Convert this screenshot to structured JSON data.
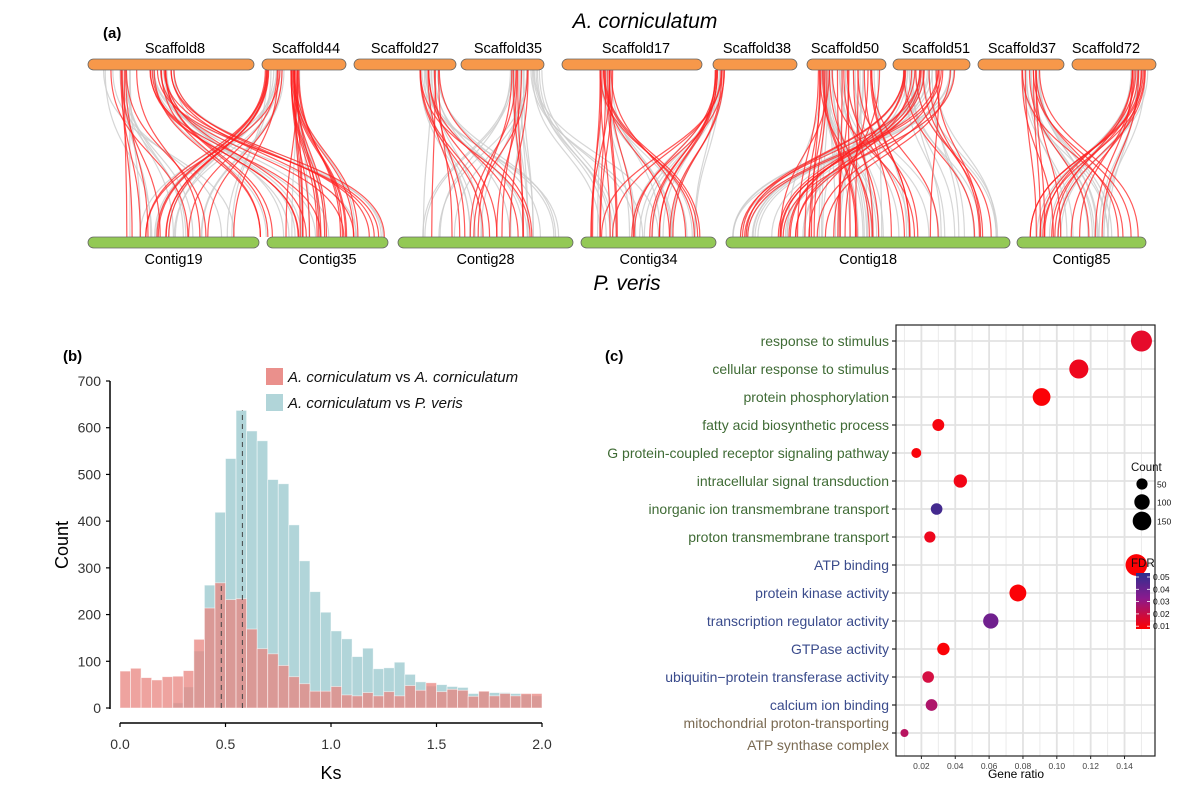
{
  "panel_a": {
    "label": "(a)",
    "top_species": "A. corniculatum",
    "bottom_species": "P. veris",
    "top_color": "#f7984a",
    "bottom_color": "#93c955",
    "highlight_color": "#ff2020",
    "background_link_color": "#cccccc",
    "scaffolds": [
      "Scaffold8",
      "Scaffold44",
      "Scaffold27",
      "Scaffold35",
      "Scaffold17",
      "Scaffold38",
      "Scaffold50",
      "Scaffold51",
      "Scaffold37",
      "Scaffold72"
    ],
    "contigs": [
      "Contig19",
      "Contig35",
      "Contig28",
      "Contig34",
      "Contig18",
      "Contig85"
    ]
  },
  "chart_data": [
    {
      "type": "bar",
      "panel": "(b)",
      "title": "",
      "xlabel": "Ks",
      "ylabel": "Count",
      "xlim": [
        0.0,
        2.0
      ],
      "ylim": [
        0,
        700
      ],
      "x_ticks": [
        "0.0",
        "0.5",
        "1.0",
        "1.5",
        "2.0"
      ],
      "y_ticks": [
        "0",
        "100",
        "200",
        "300",
        "400",
        "500",
        "600",
        "700"
      ],
      "bin_width": 0.05,
      "bin_starts": [
        0.0,
        0.05,
        0.1,
        0.15,
        0.2,
        0.25,
        0.3,
        0.35,
        0.4,
        0.45,
        0.5,
        0.55,
        0.6,
        0.65,
        0.7,
        0.75,
        0.8,
        0.85,
        0.9,
        0.95,
        1.0,
        1.05,
        1.1,
        1.15,
        1.2,
        1.25,
        1.3,
        1.35,
        1.4,
        1.45,
        1.5,
        1.55,
        1.6,
        1.65,
        1.7,
        1.75,
        1.8,
        1.85,
        1.9,
        1.95
      ],
      "legend_position": "top-right",
      "series": [
        {
          "name": "A. corniculatum vs A. corniculatum",
          "legend_parts": [
            "A. corniculatum",
            " vs ",
            "A. corniculatum"
          ],
          "color": "#e8847f",
          "values": [
            79,
            85,
            65,
            60,
            67,
            68,
            80,
            147,
            214,
            268,
            232,
            234,
            169,
            127,
            116,
            91,
            67,
            52,
            36,
            36,
            46,
            28,
            26,
            33,
            26,
            35,
            26,
            48,
            38,
            54,
            35,
            40,
            38,
            25,
            36,
            26,
            31,
            26,
            31,
            31
          ],
          "peak_ks": 0.48
        },
        {
          "name": "A. corniculatum vs P. veris",
          "legend_parts": [
            "A. corniculatum",
            " vs ",
            "P. veris"
          ],
          "color": "#a9d0d5",
          "values": [
            0,
            0,
            0,
            0,
            2,
            11,
            45,
            122,
            263,
            419,
            534,
            637,
            593,
            572,
            489,
            480,
            392,
            315,
            249,
            205,
            165,
            148,
            110,
            128,
            84,
            86,
            98,
            72,
            56,
            47,
            50,
            46,
            44,
            31,
            35,
            33,
            33,
            31,
            29,
            26
          ],
          "peak_ks": 0.58
        }
      ]
    },
    {
      "type": "scatter",
      "panel": "(c)",
      "title": "",
      "xlabel": "Gene ratio",
      "ylabel": "",
      "xlim": [
        0.005,
        0.158
      ],
      "x_ticks": [
        "0.02",
        "0.04",
        "0.06",
        "0.08",
        "0.10",
        "0.12",
        "0.14"
      ],
      "grid": true,
      "categories": [
        {
          "term": "response to stimulus",
          "group": "BP",
          "gene_ratio": 0.15,
          "count": 140,
          "fdr": 0.012
        },
        {
          "term": "cellular response to stimulus",
          "group": "BP",
          "gene_ratio": 0.113,
          "count": 110,
          "fdr": 0.008
        },
        {
          "term": "protein phosphorylation",
          "group": "BP",
          "gene_ratio": 0.091,
          "count": 92,
          "fdr": 0.002
        },
        {
          "term": "fatty acid biosynthetic process",
          "group": "BP",
          "gene_ratio": 0.03,
          "count": 30,
          "fdr": 0.004
        },
        {
          "term": "G protein-coupled receptor signaling pathway",
          "group": "BP",
          "gene_ratio": 0.017,
          "count": 17,
          "fdr": 0.003
        },
        {
          "term": "intracellular signal transduction",
          "group": "BP",
          "gene_ratio": 0.043,
          "count": 42,
          "fdr": 0.006
        },
        {
          "term": "inorganic ion transmembrane transport",
          "group": "BP",
          "gene_ratio": 0.029,
          "count": 28,
          "fdr": 0.046
        },
        {
          "term": "proton transmembrane transport",
          "group": "BP",
          "gene_ratio": 0.025,
          "count": 25,
          "fdr": 0.008
        },
        {
          "term": "ATP binding",
          "group": "MF",
          "gene_ratio": 0.147,
          "count": 150,
          "fdr": 0.001
        },
        {
          "term": "protein kinase activity",
          "group": "MF",
          "gene_ratio": 0.077,
          "count": 80,
          "fdr": 0.002
        },
        {
          "term": "transcription regulator activity",
          "group": "MF",
          "gene_ratio": 0.061,
          "count": 62,
          "fdr": 0.038
        },
        {
          "term": "GTPase activity",
          "group": "MF",
          "gene_ratio": 0.033,
          "count": 34,
          "fdr": 0.002
        },
        {
          "term": "ubiquitin−protein transferase activity",
          "group": "MF",
          "gene_ratio": 0.024,
          "count": 28,
          "fdr": 0.018
        },
        {
          "term": "calcium ion binding",
          "group": "MF",
          "gene_ratio": 0.026,
          "count": 29,
          "fdr": 0.026
        },
        {
          "term": "mitochondrial proton-transporting ATP synthase complex",
          "term_lines": [
            "mitochondrial proton-transporting",
            "ATP synthase complex"
          ],
          "group": "CC",
          "gene_ratio": 0.01,
          "count": 8,
          "fdr": 0.024
        }
      ],
      "group_colors": {
        "BP": "#3f6b35",
        "MF": "#3a4b8c",
        "CC": "#7a6a52"
      },
      "size_legend": {
        "title": "Count",
        "values": [
          50,
          100,
          150
        ]
      },
      "color_legend": {
        "title": "FDR",
        "ticks": [
          "0.05",
          "0.04",
          "0.03",
          "0.02",
          "0.01"
        ],
        "low_color": "#ff0000",
        "high_color": "#2e2f8f"
      }
    }
  ]
}
